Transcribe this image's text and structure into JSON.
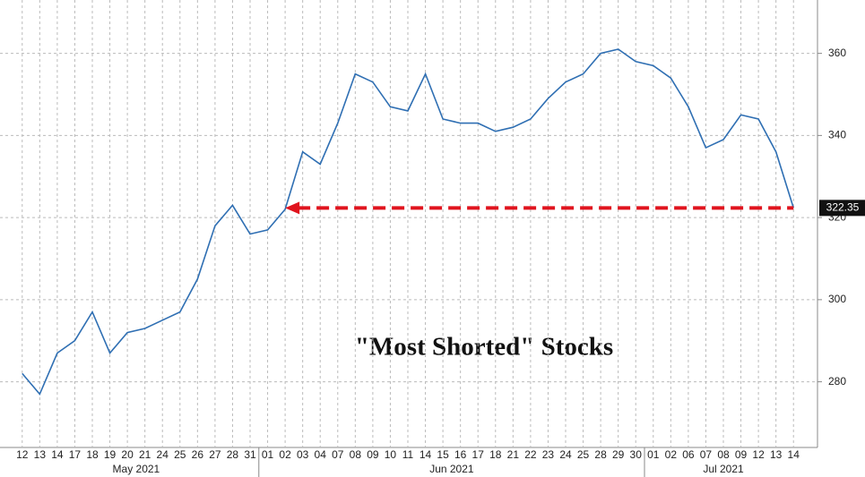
{
  "chart_data": {
    "type": "line",
    "annotation": "\"Most Shorted\" Stocks",
    "months": [
      "May 2021",
      "Jun 2021",
      "Jul 2021"
    ],
    "categories": [
      "12",
      "13",
      "14",
      "17",
      "18",
      "19",
      "20",
      "21",
      "24",
      "25",
      "26",
      "27",
      "28",
      "31",
      "01",
      "02",
      "03",
      "04",
      "07",
      "08",
      "09",
      "10",
      "11",
      "14",
      "15",
      "16",
      "17",
      "18",
      "21",
      "22",
      "23",
      "24",
      "25",
      "28",
      "29",
      "30",
      "01",
      "02",
      "06",
      "07",
      "08",
      "09",
      "12",
      "13",
      "14"
    ],
    "series": [
      {
        "color": "#2f6fb3",
        "values": [
          282,
          277,
          287,
          290,
          297,
          287,
          292,
          293,
          295,
          297,
          305,
          318,
          323,
          316,
          317,
          322,
          336,
          333,
          343,
          355,
          353,
          347,
          346,
          355,
          344,
          343,
          343,
          341,
          342,
          344,
          349,
          353,
          355,
          360,
          361,
          358,
          357,
          354,
          347,
          337,
          339,
          345,
          344,
          336,
          322.35
        ]
      }
    ],
    "arrow_color": "#e0141e",
    "ylim": [
      264,
      373
    ],
    "yticks": [
      280,
      300,
      320,
      340,
      360
    ],
    "grid": true
  }
}
